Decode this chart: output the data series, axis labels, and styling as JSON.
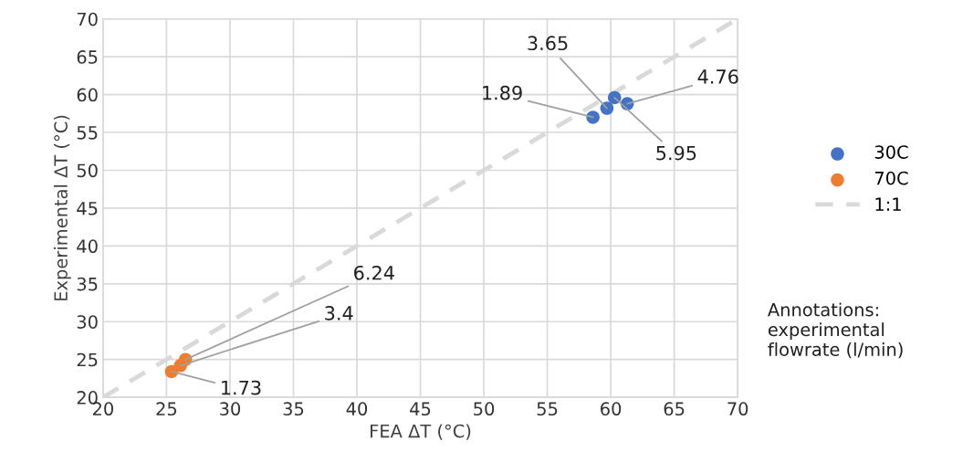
{
  "chart_data": {
    "type": "scatter",
    "xlabel": "FEA ΔT (°C)",
    "ylabel": "Experimental ΔT (°C)",
    "series": [
      {
        "name": "30C",
        "marker": "circle",
        "color": "#4472c4",
        "x": [
          58.6,
          59.7,
          60.3,
          61.3
        ],
        "values": [
          57.0,
          58.2,
          59.6,
          58.8
        ]
      },
      {
        "name": "70C",
        "marker": "circle",
        "color": "#ed7d31",
        "x": [
          25.4,
          26.1,
          26.5
        ],
        "values": [
          23.4,
          24.2,
          25.0
        ]
      },
      {
        "name": "1:1",
        "type": "line",
        "marker": "none",
        "line_style": "dashed",
        "color": "#d9d9d9",
        "x": [
          20,
          70
        ],
        "values": [
          20,
          70
        ]
      }
    ],
    "annotations": [
      {
        "text": "1.89",
        "x": 58.6,
        "y": 57.0
      },
      {
        "text": "3.65",
        "x": 59.7,
        "y": 58.2
      },
      {
        "text": "5.95",
        "x": 60.3,
        "y": 59.6
      },
      {
        "text": "4.76",
        "x": 61.3,
        "y": 58.8
      },
      {
        "text": "1.73",
        "x": 25.4,
        "y": 23.4
      },
      {
        "text": "3.4",
        "x": 26.1,
        "y": 24.2
      },
      {
        "text": "6.24",
        "x": 26.5,
        "y": 25.0
      },
      "Annotations:\nexperimental\nflowrate (l/min)"
    ],
    "xlim": [
      20,
      70
    ],
    "ylim": [
      20,
      70
    ],
    "xticks": [
      20,
      25,
      30,
      35,
      40,
      45,
      50,
      55,
      60,
      65,
      70
    ],
    "yticks": [
      20,
      25,
      30,
      35,
      40,
      45,
      50,
      55,
      60,
      65,
      70
    ],
    "grid": true,
    "legend": "right"
  }
}
